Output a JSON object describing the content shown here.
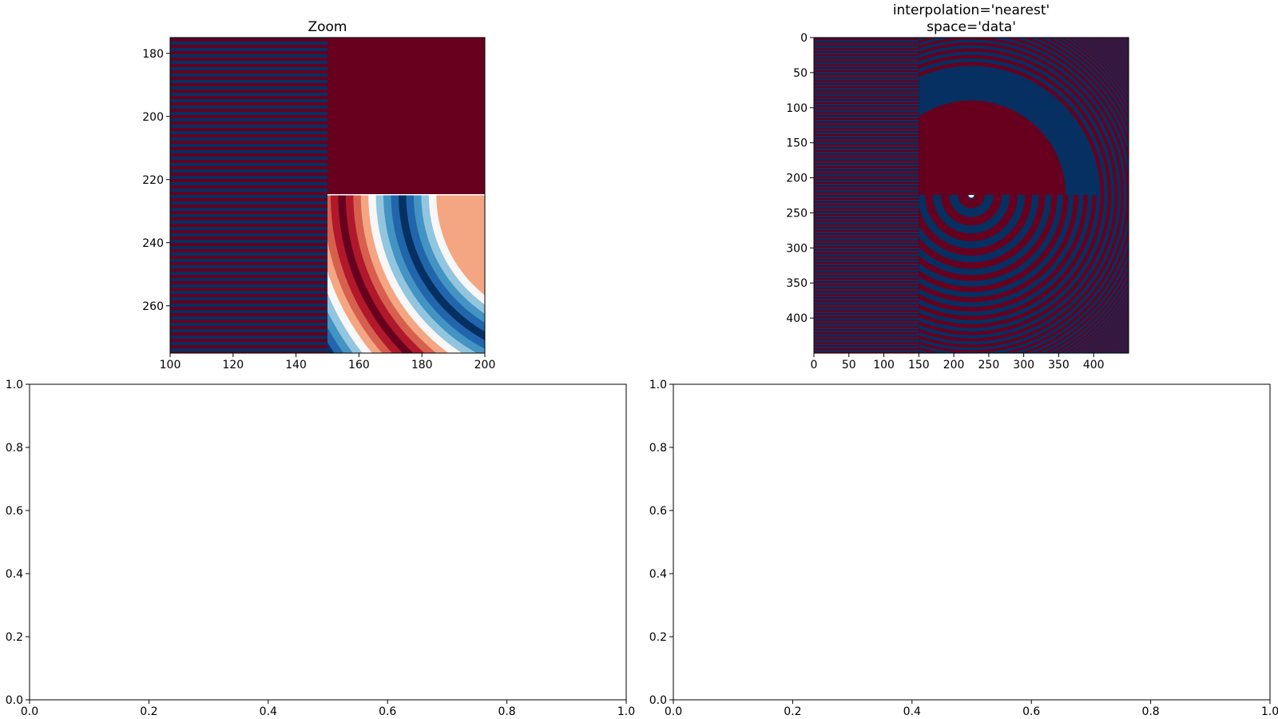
{
  "colors": {
    "dark_red": "#67001f",
    "dark_blue": "#053061",
    "mid_red": "#d6604d",
    "mid_blue": "#4393c3",
    "white": "#f7f7f7",
    "axes": "#000000"
  },
  "chart_data": [
    {
      "type": "heatmap",
      "title": "Zoom",
      "xlim": [
        100,
        200
      ],
      "ylim": [
        175,
        275
      ],
      "y_inverted": true,
      "xticks": [
        "100",
        "120",
        "140",
        "160",
        "180",
        "200"
      ],
      "yticks": [
        "180",
        "200",
        "220",
        "240",
        "260"
      ],
      "colormap": "RdBu",
      "regions": [
        {
          "name": "horizontal stripes",
          "x": [
            100,
            150
          ],
          "y": [
            175,
            275
          ],
          "pattern": "alternating red/blue rows, period 2"
        },
        {
          "name": "solid top right",
          "x": [
            150,
            200
          ],
          "y": [
            175,
            225
          ],
          "pattern": "solid dark red"
        },
        {
          "name": "concentric rings",
          "x": [
            150,
            200
          ],
          "y": [
            225,
            275
          ],
          "pattern": "concentric sinusoidal rings centred at (225, 225)"
        }
      ]
    },
    {
      "type": "heatmap",
      "title_lines": [
        "interpolation='nearest'",
        "space='data'"
      ],
      "xlim": [
        0,
        450
      ],
      "ylim": [
        0,
        450
      ],
      "y_inverted": true,
      "xticks": [
        "0",
        "50",
        "100",
        "150",
        "200",
        "250",
        "300",
        "350",
        "400"
      ],
      "yticks": [
        "0",
        "50",
        "100",
        "150",
        "200",
        "250",
        "300",
        "350",
        "400"
      ],
      "colormap": "RdBu",
      "regions": [
        {
          "name": "horizontal stripes",
          "x": [
            0,
            150
          ],
          "y": [
            0,
            450
          ],
          "pattern": "alternating red/blue rows"
        },
        {
          "name": "half disc and band",
          "x": [
            150,
            450
          ],
          "y": [
            0,
            225
          ],
          "pattern": "dark red disc radius 135, dark blue band to radius 180, chirped rings outside, centred at (225, 225)"
        },
        {
          "name": "concentric rings",
          "x": [
            150,
            450
          ],
          "y": [
            225,
            450
          ],
          "pattern": "chirped concentric rings centred at (225, 225)"
        }
      ]
    },
    {
      "type": "scatter",
      "series": [],
      "xlim": [
        0.0,
        1.0
      ],
      "ylim": [
        0.0,
        1.0
      ],
      "xticks": [
        "0.0",
        "0.2",
        "0.4",
        "0.6",
        "0.8",
        "1.0"
      ],
      "yticks": [
        "0.0",
        "0.2",
        "0.4",
        "0.6",
        "0.8",
        "1.0"
      ]
    },
    {
      "type": "scatter",
      "series": [],
      "xlim": [
        0.0,
        1.0
      ],
      "ylim": [
        0.0,
        1.0
      ],
      "xticks": [
        "0.0",
        "0.2",
        "0.4",
        "0.6",
        "0.8",
        "1.0"
      ],
      "yticks": [
        "0.0",
        "0.2",
        "0.4",
        "0.6",
        "0.8",
        "1.0"
      ]
    }
  ]
}
